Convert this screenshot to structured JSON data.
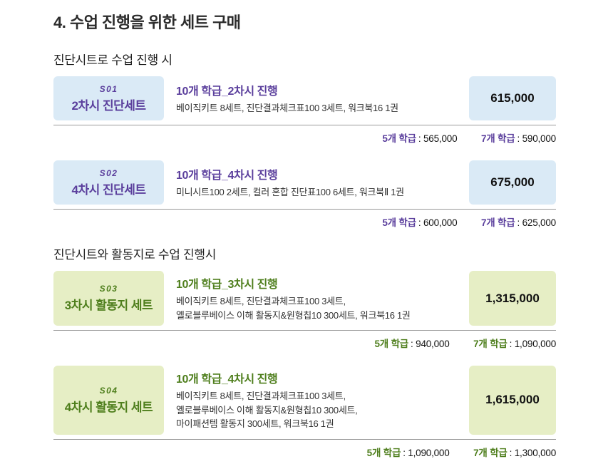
{
  "page": {
    "title": "4. 수업 진행을 위한 세트 구매"
  },
  "colors": {
    "blue_box_bg": "#daeaf6",
    "purple_accent": "#5a3e9c",
    "green_box_bg": "#e6eec5",
    "green_accent": "#4e7e1c",
    "price_text": "#111111",
    "body_text": "#333333"
  },
  "sections": [
    {
      "heading": "진단시트로 수업 진행 시",
      "theme": "blue",
      "rows": [
        {
          "code": "S01",
          "set_name": "2차시 진단세트",
          "title": "10개 학급_2차시 진행",
          "description": "베이직키트 8세트, 진단결과체크표100 3세트, 워크북16 1권",
          "price": "615,000",
          "footer": [
            {
              "label": "5개 학급",
              "value": ": 565,000"
            },
            {
              "label": "7개 학급",
              "value": ": 590,000"
            }
          ]
        },
        {
          "code": "S02",
          "set_name": "4차시 진단세트",
          "title": "10개 학급_4차시 진행",
          "description": "미니시트100 2세트, 컬러 혼합 진단표100 6세트, 워크북Ⅱ 1권",
          "price": "675,000",
          "footer": [
            {
              "label": "5개 학급",
              "value": ": 600,000"
            },
            {
              "label": "7개 학급",
              "value": ": 625,000"
            }
          ]
        }
      ]
    },
    {
      "heading": "진단시트와 활동지로 수업 진행시",
      "theme": "green",
      "rows": [
        {
          "code": "S03",
          "set_name": "3차시 활동지 세트",
          "title": "10개 학급_3차시 진행",
          "description": "베이직키트 8세트, 진단결과체크표100 3세트,\n옐로블루베이스 이해 활동지&원형칩10 300세트, 워크북16 1권",
          "price": "1,315,000",
          "footer": [
            {
              "label": "5개 학급",
              "value": ": 940,000"
            },
            {
              "label": "7개 학급",
              "value": ": 1,090,000"
            }
          ]
        },
        {
          "code": "S04",
          "set_name": "4차시 활동지 세트",
          "title": "10개 학급_4차시 진행",
          "description": "베이직키트 8세트, 진단결과체크표100 3세트,\n옐로블루베이스 이해 활동지&원형칩10 300세트,\n마이패션템 활동지 300세트, 워크북16 1권",
          "price": "1,615,000",
          "footer": [
            {
              "label": "5개 학급",
              "value": ": 1,090,000"
            },
            {
              "label": "7개 학급",
              "value": ": 1,300,000"
            }
          ]
        }
      ]
    }
  ]
}
